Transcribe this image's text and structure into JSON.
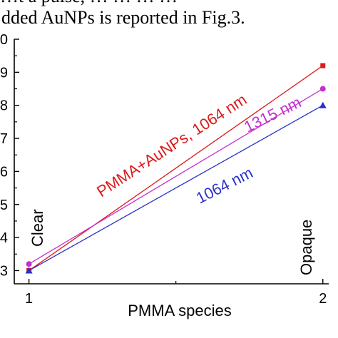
{
  "caption": {
    "line1": "…t a pulse, … … … …",
    "line2": "dded AuNPs is reported in Fig.3."
  },
  "chart_data": {
    "type": "line",
    "xlabel": "PMMA species",
    "x": [
      1,
      2
    ],
    "x_ticks": [
      "1",
      "2"
    ],
    "xlim": [
      0.95,
      2.02
    ],
    "y_ticks": [
      "3",
      "4",
      "5",
      "6",
      "7",
      "8",
      "9",
      "0"
    ],
    "ylim": [
      2.6,
      10
    ],
    "grid": false,
    "series": [
      {
        "name": "PMMA+AuNPs, 1064 nm",
        "color": "#dd1b1b",
        "marker": "square",
        "values": [
          3.0,
          9.2
        ]
      },
      {
        "name": "1315 nm",
        "color": "#c42fcf",
        "marker": "circle",
        "values": [
          3.2,
          8.5
        ]
      },
      {
        "name": "1064 nm",
        "color": "#2a32c8",
        "marker": "triangle",
        "values": [
          3.0,
          8.0
        ]
      }
    ],
    "annotations": [
      "Clear",
      "Opaque"
    ]
  }
}
